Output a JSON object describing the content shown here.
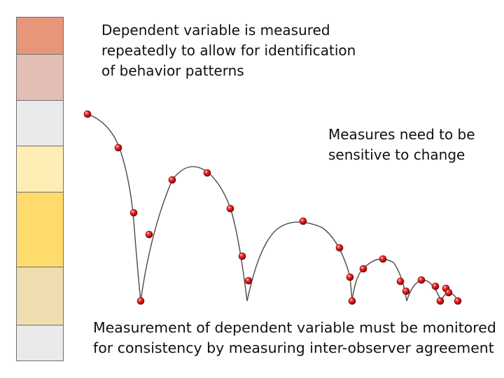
{
  "texts": {
    "top": "Dependent variable is measured\nrepeatedly to allow for identification\nof behavior patterns",
    "middle": "Measures need to be\nsensitive to change",
    "bottom": "Measurement of dependent variable must be monitored\nfor consistency by measuring inter-observer agreement"
  },
  "colors": {
    "swatches": [
      "#E8967A",
      "#E2BEB4",
      "#EAEAEA",
      "#FFEDB6",
      "#FFDB6E",
      "#EEDDAF",
      "#EAEAEA"
    ],
    "ball": "#CC1010",
    "curve": "#4a4a4a"
  }
}
